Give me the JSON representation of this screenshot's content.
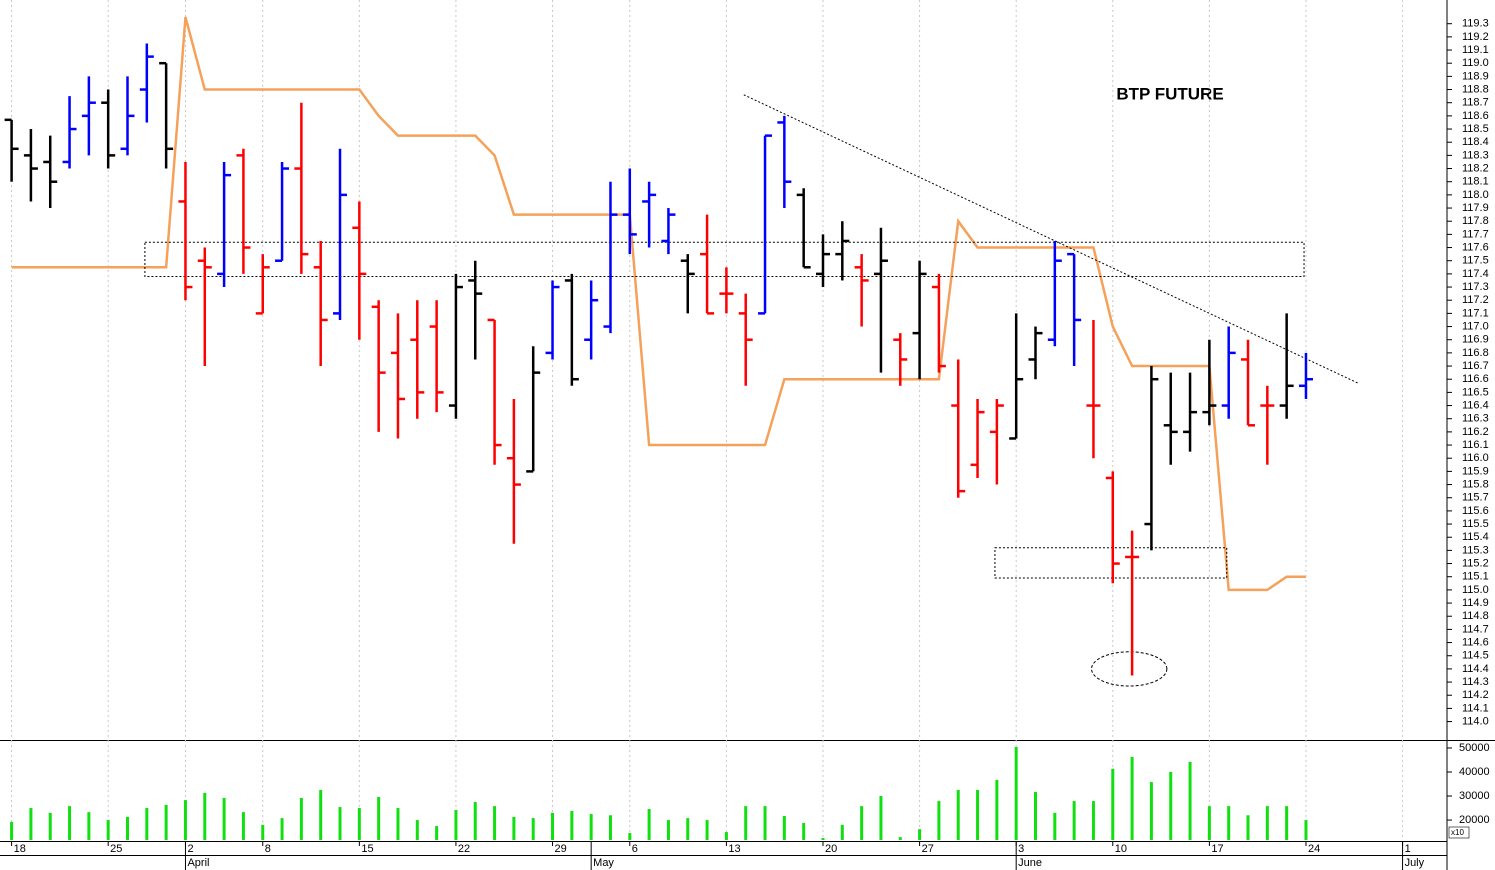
{
  "chart_data": {
    "type": "ohlc",
    "title": "BTP FUTURE",
    "x": [
      0,
      1,
      2,
      3,
      4,
      5,
      6,
      7,
      8,
      9,
      10,
      11,
      12,
      13,
      14,
      15,
      16,
      17,
      18,
      19,
      20,
      21,
      22,
      23,
      24,
      25,
      26,
      27,
      28,
      29,
      30,
      31,
      32,
      33,
      34,
      35,
      36,
      37,
      38,
      39,
      40,
      41,
      42,
      43,
      44,
      45,
      46,
      47,
      48,
      49,
      50,
      51,
      52,
      53,
      54,
      55,
      56,
      57,
      58,
      59,
      60,
      61,
      62,
      63,
      64,
      65,
      66,
      67
    ],
    "open": [
      118.57,
      118.3,
      118.25,
      118.25,
      118.6,
      118.7,
      118.35,
      118.8,
      119.0,
      117.95,
      117.5,
      117.4,
      118.3,
      117.1,
      117.5,
      118.2,
      117.45,
      117.1,
      117.75,
      117.15,
      116.8,
      116.9,
      117.0,
      116.4,
      117.35,
      117.05,
      116.0,
      115.9,
      116.8,
      117.35,
      116.9,
      117.0,
      117.85,
      117.95,
      117.65,
      117.5,
      117.55,
      117.25,
      117.1,
      117.1,
      118.55,
      118.0,
      117.4,
      117.55,
      117.45,
      117.4,
      116.9,
      116.95,
      117.3,
      116.4,
      115.95,
      116.2,
      116.15,
      116.75,
      116.9,
      117.55,
      116.4,
      115.85,
      115.25,
      115.5,
      116.25,
      116.2,
      116.35,
      116.4,
      116.75,
      116.4,
      116.4,
      116.55
    ],
    "high": [
      118.57,
      118.5,
      118.45,
      118.75,
      118.9,
      118.8,
      118.9,
      119.15,
      119.0,
      118.25,
      117.6,
      118.25,
      118.35,
      117.55,
      118.25,
      118.7,
      117.65,
      118.35,
      117.95,
      117.2,
      117.1,
      117.2,
      117.2,
      117.4,
      117.5,
      117.05,
      116.45,
      116.85,
      117.35,
      117.4,
      117.35,
      118.1,
      118.2,
      118.1,
      117.9,
      117.55,
      117.85,
      117.45,
      117.25,
      118.45,
      118.6,
      118.05,
      117.7,
      117.8,
      117.55,
      117.75,
      116.95,
      117.5,
      117.4,
      116.75,
      116.45,
      116.45,
      117.1,
      117.0,
      117.65,
      117.55,
      117.05,
      115.9,
      115.45,
      116.7,
      116.65,
      116.65,
      116.9,
      117.0,
      116.9,
      116.55,
      117.1,
      116.8
    ],
    "low": [
      118.1,
      117.95,
      117.9,
      118.2,
      118.3,
      118.2,
      118.3,
      118.55,
      118.2,
      117.2,
      116.7,
      117.3,
      117.4,
      117.1,
      117.5,
      117.4,
      116.7,
      117.05,
      116.9,
      116.2,
      116.15,
      116.3,
      116.35,
      116.3,
      116.75,
      115.95,
      115.35,
      115.9,
      116.75,
      116.55,
      116.75,
      116.95,
      117.55,
      117.6,
      117.55,
      117.1,
      117.1,
      117.1,
      116.55,
      117.1,
      117.9,
      117.45,
      117.3,
      117.35,
      117.0,
      116.65,
      116.55,
      116.6,
      116.65,
      115.7,
      115.85,
      115.8,
      116.15,
      116.6,
      116.85,
      116.7,
      116.0,
      115.05,
      114.35,
      115.3,
      115.95,
      116.05,
      116.25,
      116.3,
      116.25,
      115.95,
      116.3,
      116.45
    ],
    "close": [
      118.35,
      118.2,
      118.1,
      118.5,
      118.7,
      118.3,
      118.6,
      119.05,
      118.35,
      117.3,
      117.45,
      118.15,
      117.6,
      117.45,
      118.2,
      117.55,
      117.05,
      118.0,
      117.4,
      116.65,
      116.45,
      116.5,
      116.5,
      117.3,
      117.25,
      116.1,
      115.8,
      116.65,
      117.3,
      116.6,
      117.2,
      117.85,
      117.7,
      118.0,
      117.85,
      117.4,
      117.1,
      117.25,
      116.9,
      118.45,
      118.1,
      117.45,
      117.55,
      117.65,
      117.35,
      117.5,
      116.75,
      117.4,
      116.7,
      115.75,
      116.35,
      116.4,
      116.6,
      116.95,
      117.5,
      117.05,
      116.4,
      115.2,
      115.25,
      116.6,
      116.2,
      116.35,
      116.4,
      116.8,
      116.25,
      116.4,
      116.55,
      116.6
    ],
    "colors": [
      "black",
      "black",
      "black",
      "blue",
      "blue",
      "black",
      "blue",
      "blue",
      "black",
      "red",
      "red",
      "blue",
      "red",
      "red",
      "blue",
      "red",
      "red",
      "blue",
      "red",
      "red",
      "red",
      "red",
      "red",
      "black",
      "black",
      "red",
      "red",
      "black",
      "blue",
      "black",
      "blue",
      "blue",
      "blue",
      "blue",
      "blue",
      "black",
      "red",
      "red",
      "red",
      "blue",
      "blue",
      "black",
      "black",
      "black",
      "red",
      "black",
      "red",
      "black",
      "red",
      "red",
      "red",
      "red",
      "black",
      "black",
      "blue",
      "blue",
      "red",
      "red",
      "red",
      "black",
      "black",
      "black",
      "black",
      "blue",
      "red",
      "red",
      "black",
      "blue"
    ],
    "overlay": {
      "color": "#f5a15a",
      "values": [
        117.45,
        117.45,
        117.45,
        117.45,
        117.45,
        117.45,
        117.45,
        117.45,
        117.45,
        119.35,
        118.8,
        118.8,
        118.8,
        118.8,
        118.8,
        118.8,
        118.8,
        118.8,
        118.8,
        118.6,
        118.45,
        118.45,
        118.45,
        118.45,
        118.45,
        118.3,
        117.85,
        117.85,
        117.85,
        117.85,
        117.85,
        117.85,
        117.85,
        116.1,
        116.1,
        116.1,
        116.1,
        116.1,
        116.1,
        116.1,
        116.6,
        116.6,
        116.6,
        116.6,
        116.6,
        116.6,
        116.6,
        116.6,
        116.6,
        117.8,
        117.6,
        117.6,
        117.6,
        117.6,
        117.6,
        117.6,
        117.6,
        117.0,
        116.7,
        116.7,
        116.7,
        116.7,
        116.7,
        115.0,
        115.0,
        115.0,
        115.1,
        115.1
      ]
    },
    "volume": {
      "color": "#10e010",
      "values": [
        19200,
        25000,
        23000,
        25800,
        23300,
        20000,
        21300,
        25000,
        26300,
        28300,
        31300,
        29200,
        23300,
        18000,
        20800,
        29200,
        32500,
        25400,
        25000,
        29600,
        25000,
        20000,
        17500,
        24200,
        27500,
        25800,
        21300,
        20800,
        23000,
        23800,
        22500,
        22000,
        14600,
        24600,
        20000,
        20800,
        20000,
        15000,
        25800,
        25800,
        21700,
        18800,
        12500,
        18000,
        25800,
        30000,
        12900,
        16200,
        27900,
        32500,
        32500,
        36700,
        50400,
        31700,
        23000,
        27900,
        27900,
        41300,
        46300,
        35800,
        40000,
        44200,
        25800,
        25800,
        22000,
        25800,
        25800,
        20000
      ],
      "ylim": [
        11700,
        52900
      ],
      "yticks": [
        20000,
        30000,
        40000,
        50000
      ],
      "multiplier": "x10"
    },
    "xlim": [
      -0.6,
      74.3
    ],
    "xticks": [
      {
        "value": 0,
        "label": "18"
      },
      {
        "value": 5,
        "label": "25"
      },
      {
        "value": 9,
        "label": "2"
      },
      {
        "value": 13,
        "label": "8"
      },
      {
        "value": 18,
        "label": "15"
      },
      {
        "value": 23,
        "label": "22"
      },
      {
        "value": 28,
        "label": "29"
      },
      {
        "value": 32,
        "label": "6"
      },
      {
        "value": 37,
        "label": "13"
      },
      {
        "value": 42,
        "label": "20"
      },
      {
        "value": 47,
        "label": "27"
      },
      {
        "value": 52,
        "label": "3"
      },
      {
        "value": 57,
        "label": "10"
      },
      {
        "value": 62,
        "label": "17"
      },
      {
        "value": 67,
        "label": "24"
      },
      {
        "value": 72,
        "label": "1"
      }
    ],
    "months": [
      {
        "value": 9,
        "label": "April"
      },
      {
        "value": 30,
        "label": "May"
      },
      {
        "value": 52,
        "label": "June"
      },
      {
        "value": 72,
        "label": "July"
      }
    ],
    "ylim": [
      113.86,
      119.48
    ],
    "yticks": [
      {
        "value": 114.0,
        "label": "114.0"
      },
      114.1,
      114.2,
      114.3,
      114.4,
      114.5,
      114.6,
      114.7,
      114.8,
      114.9,
      {
        "value": 115.0,
        "label": "115.0"
      },
      115.1,
      115.2,
      115.3,
      115.4,
      115.5,
      115.6,
      115.7,
      115.8,
      115.9,
      {
        "value": 116.0,
        "label": "116.0"
      },
      116.1,
      116.2,
      116.3,
      116.4,
      116.5,
      116.6,
      116.7,
      116.8,
      116.9,
      {
        "value": 117.0,
        "label": "117.0"
      },
      117.1,
      117.2,
      117.3,
      117.4,
      117.5,
      117.6,
      117.7,
      117.8,
      117.9,
      {
        "value": 118.0,
        "label": "118.0"
      },
      118.1,
      118.2,
      118.3,
      118.4,
      118.5,
      118.6,
      118.7,
      118.8,
      118.9,
      {
        "value": 119.0,
        "label": "119.0"
      },
      119.1,
      119.2,
      119.3
    ],
    "grid": true,
    "trendline": {
      "x": [
        37.9,
        69.7
      ],
      "y": [
        118.76,
        116.57
      ]
    },
    "boxes": [
      {
        "x": [
          6.9,
          66.9
        ],
        "y": [
          117.38,
          117.64
        ]
      },
      {
        "x": [
          50.9,
          62.9
        ],
        "y": [
          115.09,
          115.32
        ]
      }
    ],
    "ellipse": {
      "x": [
        55.9,
        59.8
      ],
      "y": [
        114.27,
        114.53
      ]
    }
  }
}
